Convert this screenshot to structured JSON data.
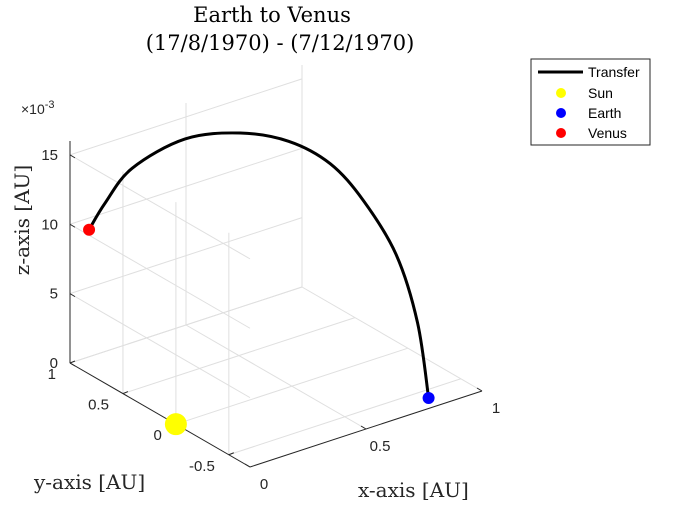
{
  "chart_data": {
    "type": "line",
    "view": "3d",
    "title": [
      "Earth to Venus",
      "(17/8/1970) - (7/12/1970)"
    ],
    "xlabel": "x-axis [AU]",
    "ylabel": "y-axis [AU]",
    "zlabel": "z-axis [AU]",
    "z_exponent_label": "×10",
    "z_exponent_power": "-3",
    "xlim": [
      0,
      1
    ],
    "ylim": [
      -0.7,
      1
    ],
    "zlim": [
      0,
      0.016
    ],
    "grid": true,
    "legend_position": "top-right outside",
    "x_ticks": [
      {
        "value": 0,
        "label": "0"
      },
      {
        "value": 0.5,
        "label": "0.5"
      },
      {
        "value": 1,
        "label": "1"
      }
    ],
    "y_ticks": [
      {
        "value": -0.5,
        "label": "-0.5"
      },
      {
        "value": 0,
        "label": "0"
      },
      {
        "value": 0.5,
        "label": "0.5"
      },
      {
        "value": 1,
        "label": "1"
      }
    ],
    "z_ticks": [
      {
        "value": 0,
        "label": "0"
      },
      {
        "value": 0.005,
        "label": "5"
      },
      {
        "value": 0.01,
        "label": "10"
      },
      {
        "value": 0.015,
        "label": "15"
      }
    ],
    "series": [
      {
        "name": "Transfer",
        "kind": "line",
        "color": "#000000",
        "points": [
          [
            0.82,
            -0.59,
            0.0
          ],
          [
            0.85,
            -0.42,
            0.0045
          ],
          [
            0.85,
            -0.22,
            0.0085
          ],
          [
            0.8,
            -0.02,
            0.0118
          ],
          [
            0.72,
            0.12,
            0.0143
          ],
          [
            0.6,
            0.25,
            0.016
          ],
          [
            0.46,
            0.4,
            0.0167
          ],
          [
            0.3,
            0.57,
            0.0164
          ],
          [
            0.14,
            0.72,
            0.0145
          ],
          [
            0.05,
            0.78,
            0.0122
          ],
          [
            0.0,
            0.82,
            0.0104
          ]
        ]
      },
      {
        "name": "Sun",
        "kind": "marker",
        "color": "#ffff00",
        "size": 11,
        "point": [
          0,
          0,
          0
        ]
      },
      {
        "name": "Earth",
        "kind": "marker",
        "color": "#0000ff",
        "size": 6,
        "point": [
          0.82,
          -0.59,
          0.0
        ]
      },
      {
        "name": "Venus",
        "kind": "marker",
        "color": "#ff0000",
        "size": 6,
        "point": [
          0.0,
          0.82,
          0.0104
        ]
      }
    ]
  }
}
